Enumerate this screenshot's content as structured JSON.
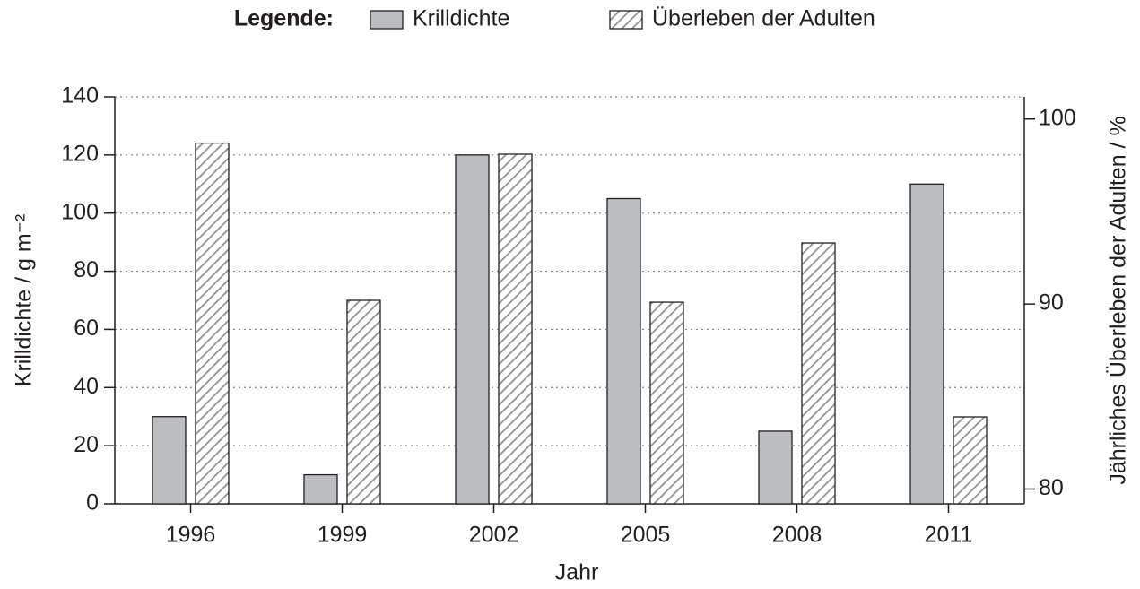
{
  "chart_data": {
    "type": "bar",
    "legend_title": "Legende:",
    "categories": [
      "1996",
      "1999",
      "2002",
      "2005",
      "2008",
      "2011"
    ],
    "series": [
      {
        "name": "Krilldichte",
        "color": "#bcbdc1",
        "values": [
          30,
          10,
          120,
          105,
          25,
          110
        ]
      },
      {
        "name": "Überleben der Adulten",
        "color": "#a6a6a6",
        "pattern": "hatch",
        "axis": "y2",
        "values": [
          98.7,
          90.2,
          98.1,
          90.1,
          93.3,
          83.9
        ]
      }
    ],
    "ylabel": "Krilldichte / g m⁻²",
    "y2label": "Jährliches Überleben der Adulten / %",
    "xlabel": "Jahr",
    "ylim": [
      0,
      140
    ],
    "yticks": [
      0,
      20,
      40,
      60,
      80,
      100,
      120,
      140
    ],
    "y2lim": [
      79.2,
      101.2
    ],
    "y2ticks": [
      80,
      90,
      100
    ],
    "grid": true
  }
}
